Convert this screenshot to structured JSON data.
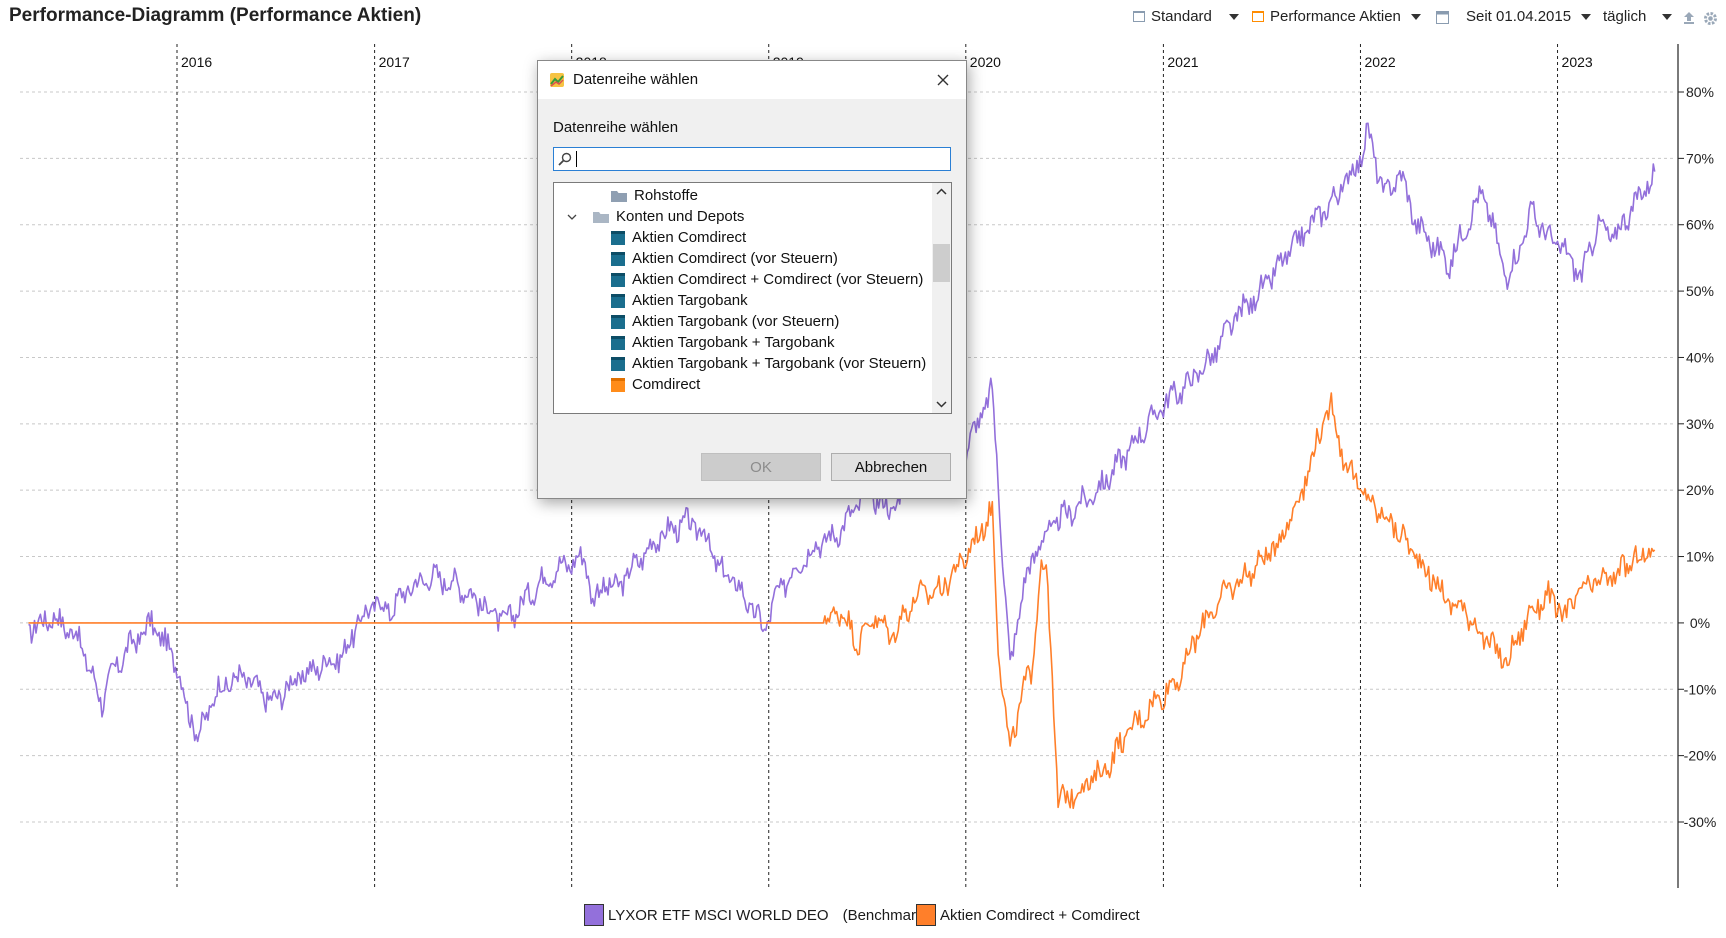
{
  "window": {
    "title": "Performance-Diagramm (Performance Aktien)"
  },
  "toolbar": {
    "view_label": "Standard",
    "portfolio_label": "Performance Aktien",
    "period_label": "Seit 01.04.2015",
    "interval_label": "täglich"
  },
  "chart_data": {
    "type": "line",
    "x_tick_labels": [
      "2016",
      "2017",
      "2018",
      "2019",
      "2020",
      "2021",
      "2022",
      "2023"
    ],
    "y_tick_labels": [
      "80%",
      "70%",
      "60%",
      "50%",
      "40%",
      "30%",
      "20%",
      "10%",
      "0%",
      "-10%",
      "-20%",
      "-30%"
    ],
    "ylim": [
      -40,
      85
    ],
    "grid": true,
    "y_axis_position": "right",
    "legend_position": "bottom",
    "series": [
      {
        "name": "LYXOR ETF MSCI WORLD DEO",
        "suffix": "(Benchmark)",
        "color": "#9370DB",
        "x": [
          "2015-04-01",
          "2015-05-15",
          "2015-07-01",
          "2015-08-15",
          "2015-09-01",
          "2015-10-01",
          "2015-11-15",
          "2016-01-01",
          "2016-01-20",
          "2016-02-11",
          "2016-03-15",
          "2016-05-01",
          "2016-06-27",
          "2016-08-01",
          "2016-10-01",
          "2016-11-04",
          "2016-12-01",
          "2017-01-01",
          "2017-02-01",
          "2017-03-01",
          "2017-04-15",
          "2017-06-01",
          "2017-07-01",
          "2017-08-01",
          "2017-09-01",
          "2017-10-01",
          "2017-11-01",
          "2017-12-01",
          "2018-01-26",
          "2018-02-09",
          "2018-03-01",
          "2018-03-23",
          "2018-05-01",
          "2018-06-01",
          "2018-07-01",
          "2018-08-01",
          "2018-09-01",
          "2018-10-01",
          "2018-11-01",
          "2018-12-24",
          "2019-01-15",
          "2019-02-15",
          "2019-04-01",
          "2019-05-01",
          "2019-06-01",
          "2019-07-01",
          "2019-08-15",
          "2019-10-01",
          "2019-11-15",
          "2020-01-01",
          "2020-02-19",
          "2020-03-23",
          "2020-04-15",
          "2020-05-15",
          "2020-06-15",
          "2020-08-01",
          "2020-09-01",
          "2020-10-01",
          "2020-11-15",
          "2021-01-01",
          "2021-02-15",
          "2021-04-01",
          "2021-05-15",
          "2021-07-01",
          "2021-08-15",
          "2021-10-01",
          "2021-11-15",
          "2021-12-31",
          "2022-01-15",
          "2022-02-15",
          "2022-03-15",
          "2022-04-15",
          "2022-06-15",
          "2022-07-15",
          "2022-08-15",
          "2022-09-30",
          "2022-10-15",
          "2022-11-15",
          "2022-12-15",
          "2023-01-15",
          "2023-02-15",
          "2023-03-15",
          "2023-04-15",
          "2023-05-15",
          "2023-06-30"
        ],
        "y": [
          -1,
          1,
          -2,
          -12,
          -8,
          -4,
          0,
          -6,
          -13,
          -17,
          -10,
          -8,
          -12,
          -9,
          -6,
          -5,
          0,
          3,
          2,
          5,
          7,
          6,
          4,
          2,
          0,
          3,
          6,
          8,
          10,
          3,
          6,
          5,
          9,
          12,
          14,
          15,
          14,
          8,
          6,
          -1,
          4,
          8,
          12,
          13,
          16,
          20,
          17,
          22,
          24,
          26,
          35,
          -7,
          5,
          12,
          15,
          18,
          20,
          23,
          28,
          33,
          36,
          40,
          46,
          50,
          55,
          60,
          64,
          70,
          74,
          64,
          68,
          60,
          54,
          60,
          65,
          52,
          55,
          62,
          58,
          56,
          52,
          60,
          58,
          62,
          68
        ]
      },
      {
        "name": "Aktien Comdirect + Comdirect",
        "color": "#FF7F2A",
        "x": [
          "2015-04-01",
          "2019-04-15",
          "2019-05-15",
          "2019-06-15",
          "2019-07-15",
          "2019-08-15",
          "2019-10-01",
          "2019-11-15",
          "2020-01-01",
          "2020-02-19",
          "2020-03-01",
          "2020-03-23",
          "2020-04-15",
          "2020-05-01",
          "2020-05-20",
          "2020-06-01",
          "2020-06-20",
          "2020-08-01",
          "2020-09-15",
          "2020-11-01",
          "2020-12-15",
          "2021-02-01",
          "2021-03-15",
          "2021-05-01",
          "2021-06-15",
          "2021-08-01",
          "2021-09-15",
          "2021-10-15",
          "2021-11-08",
          "2021-11-30",
          "2022-01-01",
          "2022-02-01",
          "2022-03-01",
          "2022-04-15",
          "2022-06-15",
          "2022-07-15",
          "2022-08-15",
          "2022-09-30",
          "2022-10-15",
          "2022-11-15",
          "2022-12-15",
          "2023-01-15",
          "2023-02-15",
          "2023-03-15",
          "2023-04-15",
          "2023-05-15",
          "2023-06-30"
        ],
        "y": [
          0,
          0,
          2,
          -3,
          1,
          -2,
          4,
          5,
          10,
          17,
          -3,
          -20,
          -10,
          -8,
          10,
          5,
          -27,
          -25,
          -22,
          -16,
          -12,
          -8,
          0,
          5,
          8,
          12,
          20,
          28,
          33,
          25,
          20,
          17,
          15,
          10,
          3,
          2,
          -2,
          -6,
          -3,
          2,
          4,
          1,
          5,
          6,
          7,
          9,
          11
        ]
      }
    ]
  },
  "dialog": {
    "title": "Datenreihe wählen",
    "label": "Datenreihe wählen",
    "search_value": "",
    "items": [
      {
        "label": "Rohstoffe",
        "kind": "folder",
        "level": 2
      },
      {
        "label": "Konten und Depots",
        "kind": "folder-open",
        "level": 1
      },
      {
        "label": "Aktien Comdirect",
        "kind": "account-teal",
        "level": 2
      },
      {
        "label": "Aktien Comdirect (vor Steuern)",
        "kind": "account-teal",
        "level": 2
      },
      {
        "label": "Aktien Comdirect + Comdirect (vor Steuern)",
        "kind": "account-teal",
        "level": 2
      },
      {
        "label": "Aktien Targobank",
        "kind": "account-teal",
        "level": 2
      },
      {
        "label": "Aktien Targobank (vor Steuern)",
        "kind": "account-teal",
        "level": 2
      },
      {
        "label": "Aktien Targobank + Targobank",
        "kind": "account-teal",
        "level": 2
      },
      {
        "label": "Aktien Targobank + Targobank (vor Steuern)",
        "kind": "account-teal",
        "level": 2
      },
      {
        "label": "Comdirect",
        "kind": "account-orange",
        "level": 2
      }
    ],
    "ok_label": "OK",
    "cancel_label": "Abbrechen"
  }
}
